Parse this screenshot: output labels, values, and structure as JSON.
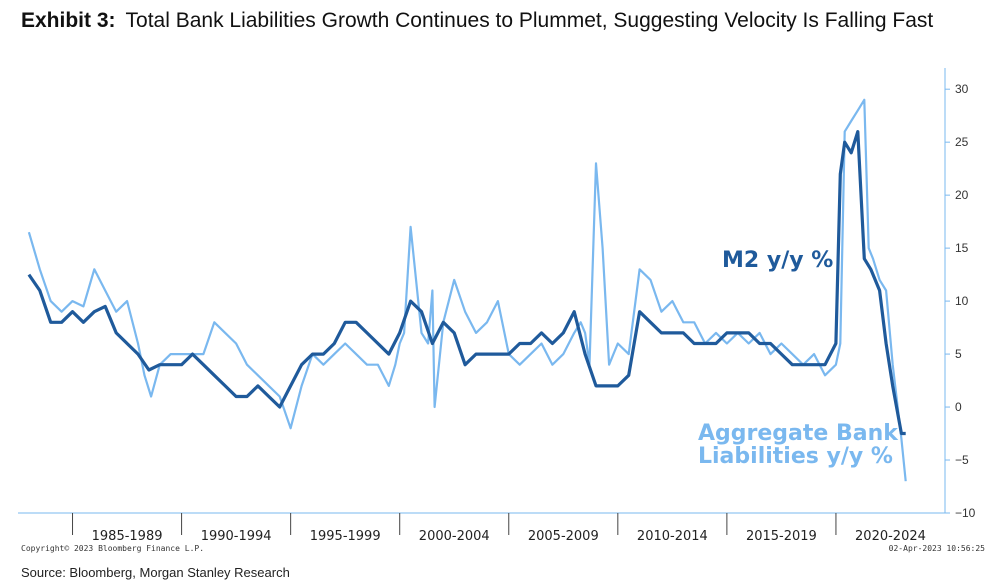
{
  "header": {
    "exhibit": "Exhibit 3:",
    "title": "Total Bank Liabilities Growth Continues to Plummet, Suggesting Velocity Is Falling Fast"
  },
  "footer": {
    "copyright": "Copyright© 2023 Bloomberg Finance L.P.",
    "timestamp": "02-Apr-2023 10:56:25",
    "source": "Source: Bloomberg, Morgan Stanley Research"
  },
  "colors": {
    "m2": "#1f5a9b",
    "bank": "#7ab8ef",
    "axis": "#7ab8ef"
  },
  "chart_data": {
    "type": "line",
    "xlabel": "",
    "ylabel": "",
    "x_tick_labels": [
      "1985-1989",
      "1990-1994",
      "1995-1999",
      "2000-2004",
      "2005-2009",
      "2010-2014",
      "2015-2019",
      "2020-2024"
    ],
    "x_ticks": [
      1985,
      1990,
      1995,
      2000,
      2005,
      2010,
      2015,
      2020
    ],
    "xlim": [
      1982.5,
      2025.0
    ],
    "ylim": [
      -10,
      32
    ],
    "y_ticks": [
      -10,
      -5,
      0,
      5,
      10,
      15,
      20,
      25,
      30
    ],
    "y_axis_side": "right",
    "grid": false,
    "annotations": [
      {
        "text": "M2 y/y %",
        "series": "M2 y/y %"
      },
      {
        "text": "Aggregate Bank",
        "series": "Aggregate Bank Liabilities y/y %"
      },
      {
        "text": "Liabilities y/y %",
        "series": "Aggregate Bank Liabilities y/y %"
      }
    ],
    "series": [
      {
        "name": "Aggregate Bank Liabilities y/y %",
        "x": [
          1983.0,
          1983.5,
          1984.0,
          1984.5,
          1985.0,
          1985.5,
          1986.0,
          1986.5,
          1987.0,
          1987.5,
          1988.0,
          1988.3,
          1988.6,
          1989.0,
          1989.5,
          1990.0,
          1990.5,
          1991.0,
          1991.5,
          1992.0,
          1992.5,
          1993.0,
          1993.5,
          1994.0,
          1994.5,
          1995.0,
          1995.5,
          1996.0,
          1996.5,
          1997.0,
          1997.5,
          1998.0,
          1998.5,
          1999.0,
          1999.5,
          1999.8,
          2000.0,
          2000.2,
          2000.5,
          2001.0,
          2001.3,
          2001.5,
          2001.6,
          2002.0,
          2002.5,
          2003.0,
          2003.5,
          2004.0,
          2004.5,
          2005.0,
          2005.5,
          2006.0,
          2006.5,
          2007.0,
          2007.5,
          2008.0,
          2008.3,
          2008.5,
          2008.7,
          2009.0,
          2009.3,
          2009.6,
          2010.0,
          2010.5,
          2011.0,
          2011.5,
          2012.0,
          2012.5,
          2013.0,
          2013.5,
          2014.0,
          2014.5,
          2015.0,
          2015.5,
          2016.0,
          2016.5,
          2017.0,
          2017.5,
          2018.0,
          2018.5,
          2019.0,
          2019.5,
          2020.0,
          2020.2,
          2020.4,
          2020.7,
          2021.0,
          2021.3,
          2021.5,
          2021.7,
          2022.0,
          2022.3,
          2022.6,
          2023.0,
          2023.2
        ],
        "values": [
          16.5,
          13,
          10,
          9,
          10,
          9.5,
          13,
          11,
          9,
          10,
          6,
          3,
          1,
          4,
          5,
          5,
          5,
          5,
          8,
          7,
          6,
          4,
          3,
          2,
          1,
          -2,
          2,
          5,
          4,
          5,
          6,
          5,
          4,
          4,
          2,
          4,
          6,
          7,
          17,
          7,
          6,
          11,
          0,
          8,
          12,
          9,
          7,
          8,
          10,
          5,
          4,
          5,
          6,
          4,
          5,
          7,
          8,
          7,
          4,
          23,
          15,
          4,
          6,
          5,
          13,
          12,
          9,
          10,
          8,
          8,
          6,
          7,
          6,
          7,
          6,
          7,
          5,
          6,
          5,
          4,
          5,
          3,
          4,
          6,
          26,
          27,
          28,
          29,
          15,
          14,
          12,
          11,
          4,
          -3,
          -7
        ]
      },
      {
        "name": "M2 y/y %",
        "x": [
          1983.0,
          1983.5,
          1984.0,
          1984.5,
          1985.0,
          1985.5,
          1986.0,
          1986.5,
          1987.0,
          1987.5,
          1988.0,
          1988.5,
          1989.0,
          1989.5,
          1990.0,
          1990.5,
          1991.0,
          1991.5,
          1992.0,
          1992.5,
          1993.0,
          1993.5,
          1994.0,
          1994.5,
          1995.0,
          1995.5,
          1996.0,
          1996.5,
          1997.0,
          1997.5,
          1998.0,
          1998.5,
          1999.0,
          1999.5,
          2000.0,
          2000.5,
          2001.0,
          2001.5,
          2002.0,
          2002.5,
          2003.0,
          2003.5,
          2004.0,
          2004.5,
          2005.0,
          2005.5,
          2006.0,
          2006.5,
          2007.0,
          2007.5,
          2008.0,
          2008.5,
          2009.0,
          2009.5,
          2010.0,
          2010.5,
          2011.0,
          2011.5,
          2012.0,
          2012.5,
          2013.0,
          2013.5,
          2014.0,
          2014.5,
          2015.0,
          2015.5,
          2016.0,
          2016.5,
          2017.0,
          2017.5,
          2018.0,
          2018.5,
          2019.0,
          2019.5,
          2020.0,
          2020.2,
          2020.4,
          2020.7,
          2021.0,
          2021.3,
          2021.6,
          2022.0,
          2022.3,
          2022.6,
          2023.0,
          2023.2
        ],
        "values": [
          12.5,
          11,
          8,
          8,
          9,
          8,
          9,
          9.5,
          7,
          6,
          5,
          3.5,
          4,
          4,
          4,
          5,
          4,
          3,
          2,
          1,
          1,
          2,
          1,
          0,
          2,
          4,
          5,
          5,
          6,
          8,
          8,
          7,
          6,
          5,
          7,
          10,
          9,
          6,
          8,
          7,
          4,
          5,
          5,
          5,
          5,
          6,
          6,
          7,
          6,
          7,
          9,
          5,
          2,
          2,
          2,
          3,
          9,
          8,
          7,
          7,
          7,
          6,
          6,
          6,
          7,
          7,
          7,
          6,
          6,
          5,
          4,
          4,
          4,
          4,
          6,
          22,
          25,
          24,
          26,
          14,
          13,
          11,
          6,
          2,
          -2.5,
          -2.5
        ]
      }
    ]
  }
}
